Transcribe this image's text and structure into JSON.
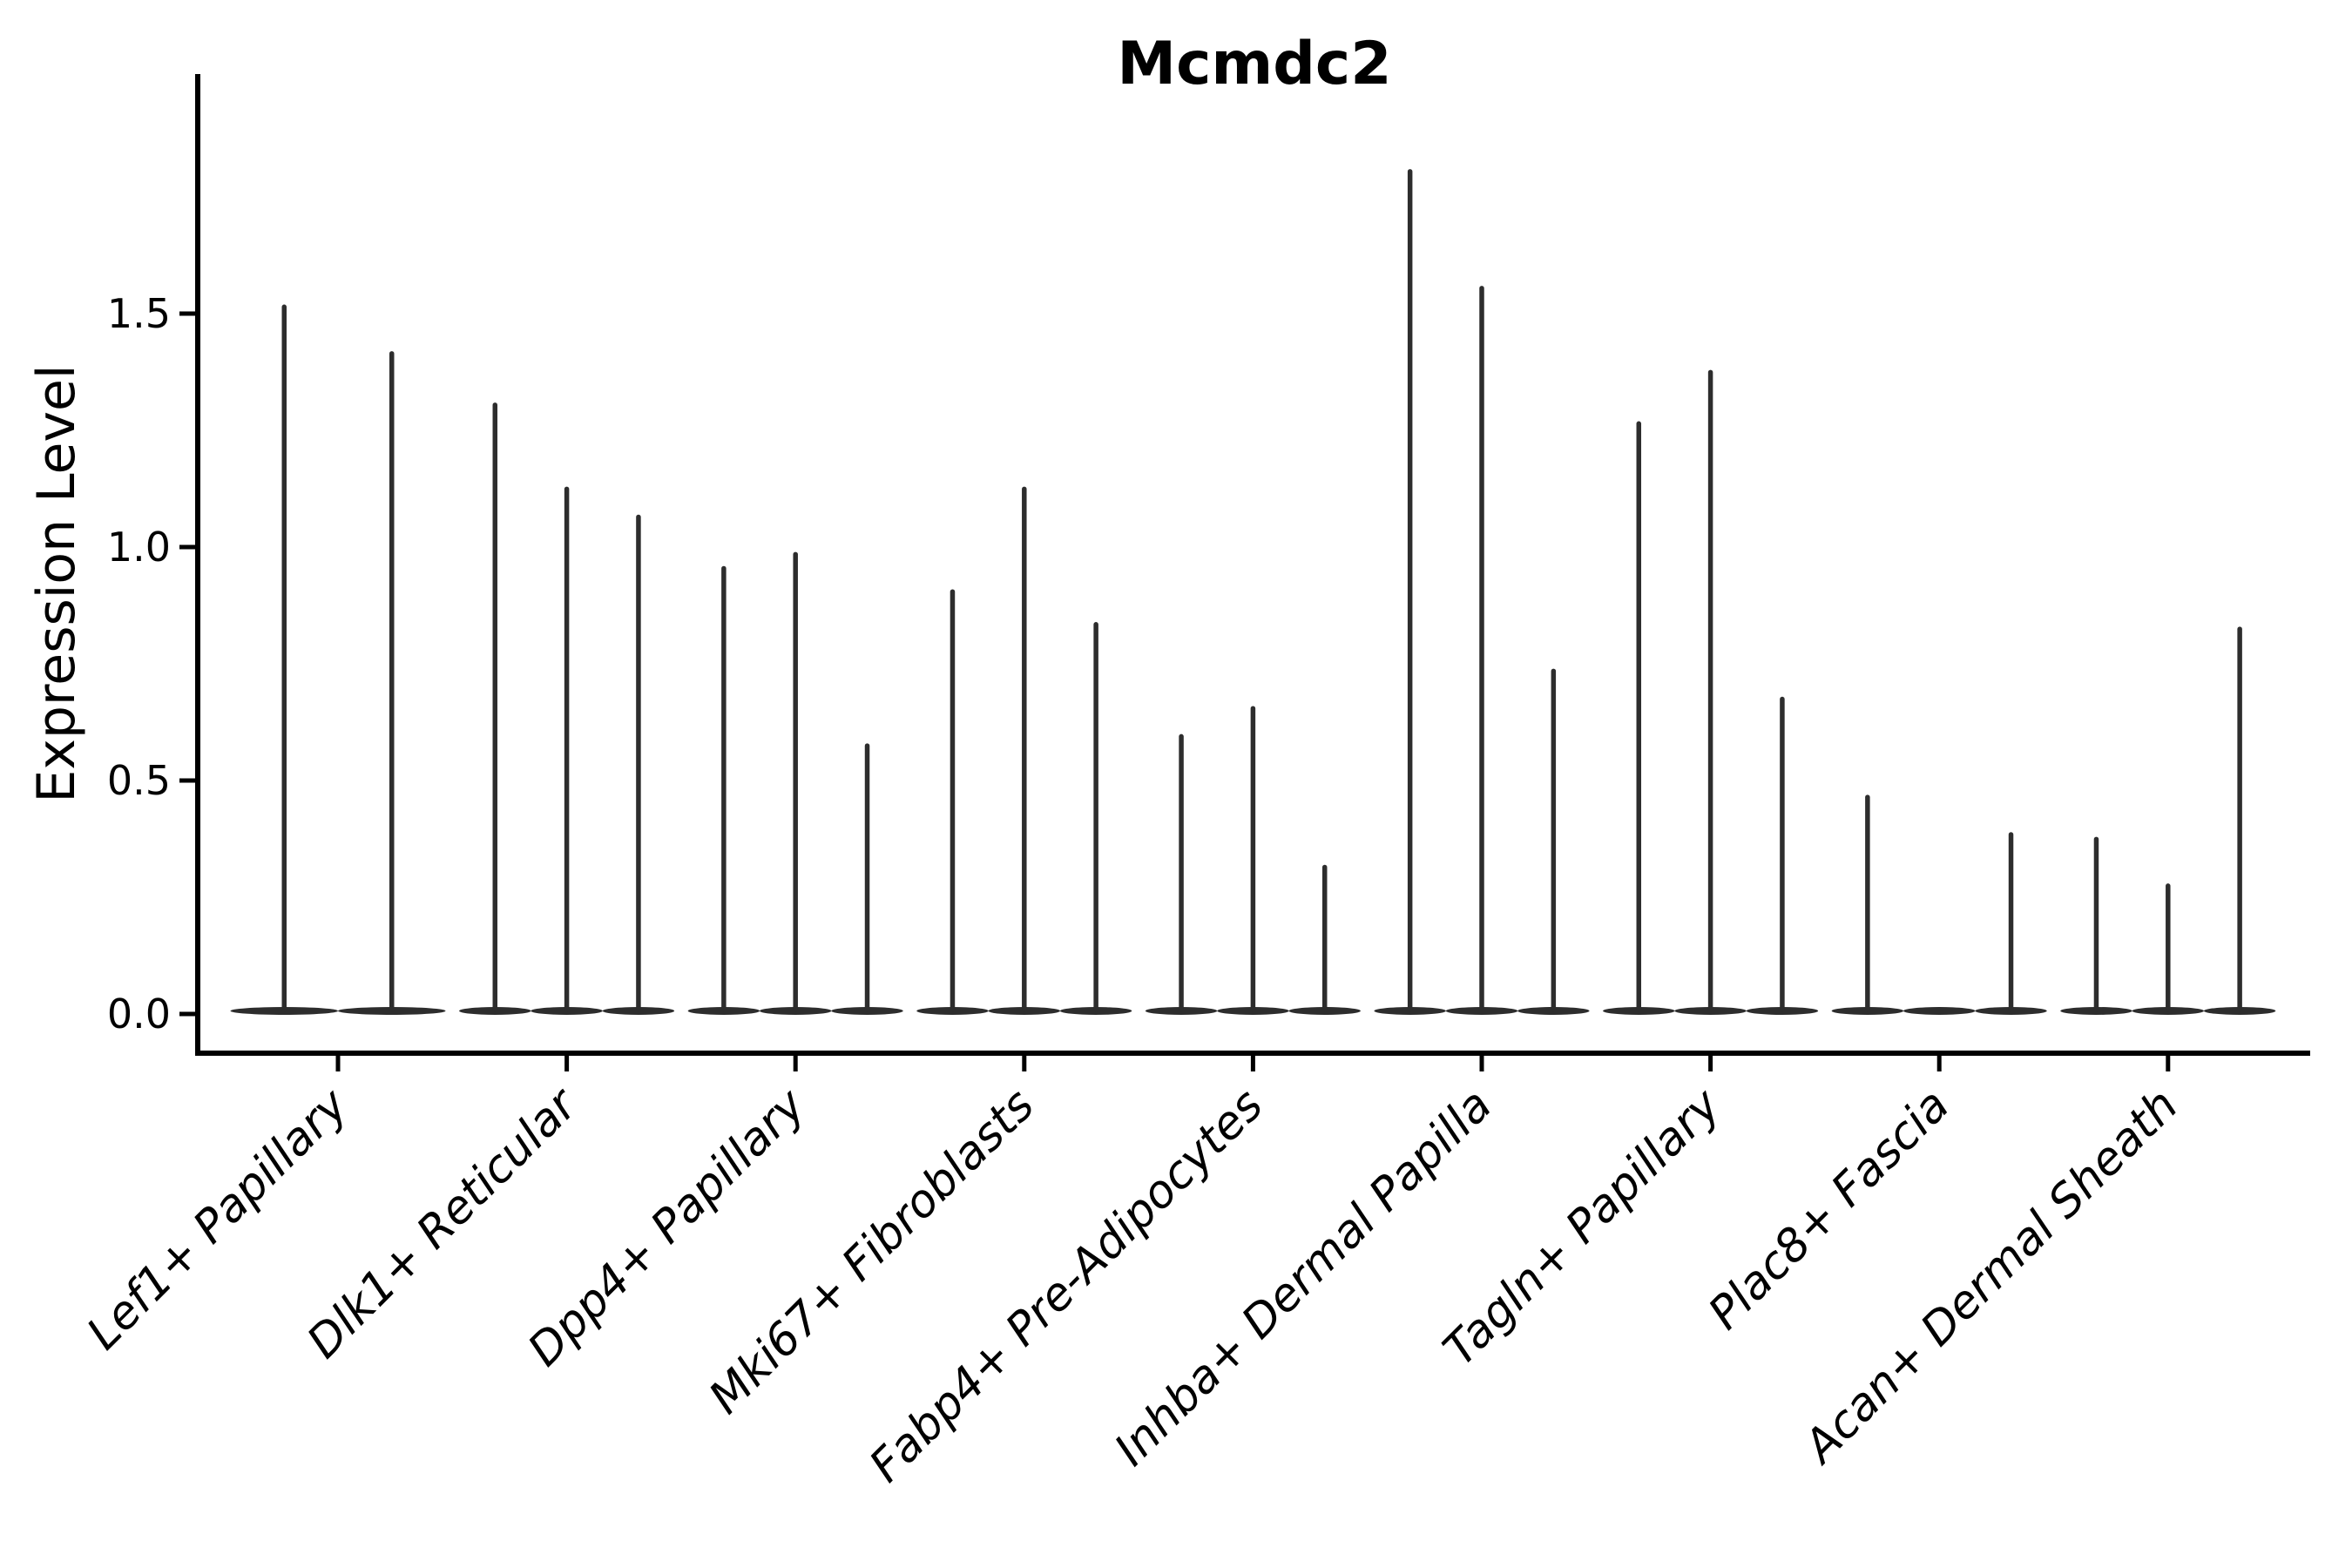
{
  "title": "Mcmdc2",
  "axes": {
    "ylabel": "Expression Level",
    "ytick_labels": [
      "0.0",
      "0.5",
      "1.0",
      "1.5"
    ]
  },
  "chart_data": {
    "type": "violin",
    "title": "Mcmdc2",
    "xlabel": "",
    "ylabel": "Expression Level",
    "yticks": [
      0.0,
      0.5,
      1.0,
      1.5
    ],
    "ylim": [
      -0.08,
      2.01
    ],
    "grid": false,
    "legend": "none",
    "style_note": "Seurat/scanpy-style stacked violin column: each cell-type group shows 2-3 extremely thin violins (vertical density spikes) rising from a wide flattened base at expression 0; a value of 0 means a flat violin with base only.",
    "categories": [
      "Lef1+ Papillary",
      "Dlk1+ Reticular",
      "Dpp4+ Papillary",
      "Mki67+ Fibroblasts",
      "Fabp4+ Pre-Adipocytes",
      "Inhba+ Dermal Papilla",
      "Tagln+ Papillary",
      "Plac8+ Fascia",
      "Acan+ Dermal Sheath"
    ],
    "groups": [
      {
        "category": "Lef1+ Papillary",
        "violin_max": [
          1.52,
          1.42
        ]
      },
      {
        "category": "Dlk1+ Reticular",
        "violin_max": [
          1.31,
          1.13,
          1.07
        ]
      },
      {
        "category": "Dpp4+ Papillary",
        "violin_max": [
          0.96,
          0.99,
          0.58
        ]
      },
      {
        "category": "Mki67+ Fibroblasts",
        "violin_max": [
          0.91,
          1.13,
          0.84
        ]
      },
      {
        "category": "Fabp4+ Pre-Adipocytes",
        "violin_max": [
          0.6,
          0.66,
          0.32
        ]
      },
      {
        "category": "Inhba+ Dermal Papilla",
        "violin_max": [
          1.81,
          1.56,
          0.74
        ]
      },
      {
        "category": "Tagln+ Papillary",
        "violin_max": [
          1.27,
          1.38,
          0.68
        ]
      },
      {
        "category": "Plac8+ Fascia",
        "violin_max": [
          0.47,
          0,
          0.39
        ]
      },
      {
        "category": "Acan+ Dermal Sheath",
        "violin_max": [
          0.38,
          0.28,
          0.83
        ]
      }
    ]
  },
  "colors": {
    "violin": "#2d2d2d",
    "axis": "#000000",
    "text": "#000000",
    "background": "#ffffff"
  }
}
